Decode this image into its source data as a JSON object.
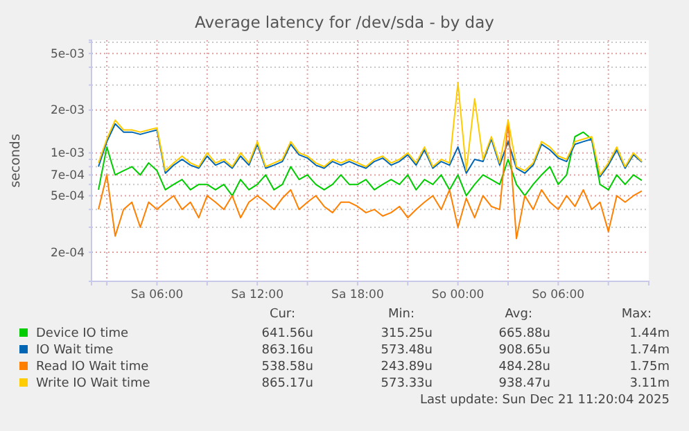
{
  "chart_data": {
    "type": "line",
    "title": "Average latency for /dev/sda - by day",
    "ylabel": "seconds",
    "log": "y",
    "grid": true,
    "legend": "bottom",
    "line_style": "solid",
    "marker": "none",
    "xlim": [
      "2025-12-20T02:05",
      "2025-12-21T11:25"
    ],
    "xticks": [
      {
        "value": "2025-12-20T03:00",
        "label": null
      },
      {
        "value": "2025-12-20T06:00",
        "label": "Sa 06:00"
      },
      {
        "value": "2025-12-20T09:00",
        "label": null
      },
      {
        "value": "2025-12-20T12:00",
        "label": "Sa 12:00"
      },
      {
        "value": "2025-12-20T15:00",
        "label": null
      },
      {
        "value": "2025-12-20T18:00",
        "label": "Sa 18:00"
      },
      {
        "value": "2025-12-20T21:00",
        "label": null
      },
      {
        "value": "2025-12-21T00:00",
        "label": "So 00:00"
      },
      {
        "value": "2025-12-21T03:00",
        "label": null
      },
      {
        "value": "2025-12-21T06:00",
        "label": "So 06:00"
      },
      {
        "value": "2025-12-21T09:00",
        "label": null
      }
    ],
    "ylim": [
      0.000125,
      0.0062
    ],
    "yticks": [
      {
        "value": 0.0002,
        "label": "2e-04"
      },
      {
        "value": 0.0003,
        "label": null
      },
      {
        "value": 0.0004,
        "label": null
      },
      {
        "value": 0.0005,
        "label": "5e-04"
      },
      {
        "value": 0.0006,
        "label": null
      },
      {
        "value": 0.0007,
        "label": "7e-04"
      },
      {
        "value": 0.0008,
        "label": null
      },
      {
        "value": 0.0009,
        "label": null
      },
      {
        "value": 0.001,
        "label": "1e-03"
      },
      {
        "value": 0.002,
        "label": "2e-03"
      },
      {
        "value": 0.003,
        "label": null
      },
      {
        "value": 0.004,
        "label": null
      },
      {
        "value": 0.005,
        "label": "5e-03"
      },
      {
        "value": 0.006,
        "label": null
      }
    ],
    "x": [
      "2025-12-20T02:30",
      "2025-12-20T03:00",
      "2025-12-20T03:30",
      "2025-12-20T04:00",
      "2025-12-20T04:30",
      "2025-12-20T05:00",
      "2025-12-20T05:30",
      "2025-12-20T06:00",
      "2025-12-20T06:30",
      "2025-12-20T07:00",
      "2025-12-20T07:30",
      "2025-12-20T08:00",
      "2025-12-20T08:30",
      "2025-12-20T09:00",
      "2025-12-20T09:30",
      "2025-12-20T10:00",
      "2025-12-20T10:30",
      "2025-12-20T11:00",
      "2025-12-20T11:30",
      "2025-12-20T12:00",
      "2025-12-20T12:30",
      "2025-12-20T13:00",
      "2025-12-20T13:30",
      "2025-12-20T14:00",
      "2025-12-20T14:30",
      "2025-12-20T15:00",
      "2025-12-20T15:30",
      "2025-12-20T16:00",
      "2025-12-20T16:30",
      "2025-12-20T17:00",
      "2025-12-20T17:30",
      "2025-12-20T18:00",
      "2025-12-20T18:30",
      "2025-12-20T19:00",
      "2025-12-20T19:30",
      "2025-12-20T20:00",
      "2025-12-20T20:30",
      "2025-12-20T21:00",
      "2025-12-20T21:30",
      "2025-12-20T22:00",
      "2025-12-20T22:30",
      "2025-12-20T23:00",
      "2025-12-20T23:30",
      "2025-12-21T00:00",
      "2025-12-21T00:30",
      "2025-12-21T01:00",
      "2025-12-21T01:30",
      "2025-12-21T02:00",
      "2025-12-21T02:30",
      "2025-12-21T03:00",
      "2025-12-21T03:30",
      "2025-12-21T04:00",
      "2025-12-21T04:30",
      "2025-12-21T05:00",
      "2025-12-21T05:30",
      "2025-12-21T06:00",
      "2025-12-21T06:30",
      "2025-12-21T07:00",
      "2025-12-21T07:30",
      "2025-12-21T08:00",
      "2025-12-21T08:30",
      "2025-12-21T09:00",
      "2025-12-21T09:30",
      "2025-12-21T10:00",
      "2025-12-21T10:30",
      "2025-12-21T11:00"
    ],
    "series": [
      {
        "name": "Device IO time",
        "color": "#00cc00",
        "values": [
          0.00055,
          0.0011,
          0.0007,
          0.00075,
          0.0008,
          0.0007,
          0.00085,
          0.00075,
          0.00055,
          0.0006,
          0.00065,
          0.00055,
          0.0006,
          0.0006,
          0.00055,
          0.0006,
          0.0005,
          0.00065,
          0.00055,
          0.0006,
          0.0007,
          0.00055,
          0.0006,
          0.0008,
          0.00065,
          0.0007,
          0.0006,
          0.00055,
          0.0006,
          0.0007,
          0.0006,
          0.0006,
          0.00065,
          0.00055,
          0.0006,
          0.00065,
          0.0006,
          0.0007,
          0.00055,
          0.00065,
          0.0006,
          0.0007,
          0.00055,
          0.0007,
          0.0005,
          0.0006,
          0.0007,
          0.00065,
          0.0006,
          0.0009,
          0.0006,
          0.0005,
          0.0006,
          0.0007,
          0.0008,
          0.0006,
          0.0007,
          0.0013,
          0.0014,
          0.00125,
          0.0006,
          0.00055,
          0.0007,
          0.0006,
          0.0007,
          0.00064
        ]
      },
      {
        "name": "IO Wait time",
        "color": "#0066b3",
        "values": [
          0.0008,
          0.0012,
          0.0016,
          0.0014,
          0.0014,
          0.00135,
          0.0014,
          0.00145,
          0.00072,
          0.00082,
          0.0009,
          0.00082,
          0.00078,
          0.00095,
          0.00082,
          0.00087,
          0.00078,
          0.00095,
          0.00082,
          0.00115,
          0.00078,
          0.00082,
          0.00087,
          0.00115,
          0.00097,
          0.00092,
          0.00082,
          0.00078,
          0.00087,
          0.00082,
          0.00087,
          0.00082,
          0.00078,
          0.00087,
          0.00092,
          0.00082,
          0.00087,
          0.00097,
          0.00082,
          0.00105,
          0.00078,
          0.00087,
          0.00082,
          0.0011,
          0.00072,
          0.0009,
          0.00087,
          0.00125,
          0.00082,
          0.0012,
          0.00078,
          0.00072,
          0.00082,
          0.00115,
          0.00105,
          0.00092,
          0.00087,
          0.00115,
          0.0012,
          0.00125,
          0.00068,
          0.00082,
          0.00105,
          0.00078,
          0.00097,
          0.00086
        ]
      },
      {
        "name": "Read IO Wait time",
        "color": "#ff8000",
        "values": [
          0.0004,
          0.0007,
          0.00026,
          0.0004,
          0.00045,
          0.0003,
          0.00045,
          0.0004,
          0.00045,
          0.0005,
          0.0004,
          0.00045,
          0.00035,
          0.0005,
          0.00045,
          0.0004,
          0.0005,
          0.00035,
          0.00045,
          0.0005,
          0.00045,
          0.0004,
          0.00048,
          0.00055,
          0.0004,
          0.00045,
          0.0005,
          0.00042,
          0.00038,
          0.00045,
          0.00045,
          0.00042,
          0.00038,
          0.0004,
          0.00036,
          0.00038,
          0.00042,
          0.00035,
          0.0004,
          0.00045,
          0.0005,
          0.0004,
          0.00055,
          0.0003,
          0.00048,
          0.00035,
          0.0005,
          0.00042,
          0.0004,
          0.00165,
          0.00025,
          0.0005,
          0.0004,
          0.00055,
          0.00045,
          0.0004,
          0.0005,
          0.00042,
          0.00055,
          0.0004,
          0.00045,
          0.00028,
          0.0005,
          0.00045,
          0.0005,
          0.00054
        ]
      },
      {
        "name": "Write IO Wait time",
        "color": "#ffcc00",
        "values": [
          0.00085,
          0.00125,
          0.0017,
          0.00145,
          0.00145,
          0.0014,
          0.00145,
          0.0015,
          0.00075,
          0.00085,
          0.00095,
          0.00085,
          0.0008,
          0.001,
          0.00085,
          0.0009,
          0.0008,
          0.001,
          0.00085,
          0.0012,
          0.0008,
          0.00085,
          0.0009,
          0.0012,
          0.001,
          0.00095,
          0.00085,
          0.0008,
          0.0009,
          0.00085,
          0.0009,
          0.00085,
          0.0008,
          0.0009,
          0.00095,
          0.00085,
          0.0009,
          0.001,
          0.00085,
          0.0011,
          0.0008,
          0.0009,
          0.00085,
          0.0031,
          0.00075,
          0.0024,
          0.0009,
          0.0013,
          0.00085,
          0.0017,
          0.0008,
          0.00075,
          0.00085,
          0.0012,
          0.0011,
          0.00095,
          0.0009,
          0.0012,
          0.00125,
          0.0013,
          0.0007,
          0.00085,
          0.0011,
          0.0008,
          0.001,
          0.00087
        ]
      }
    ],
    "annotations": [
      "Cur:",
      "Min:",
      "Avg:",
      "Max:",
      "641.56u",
      "315.25u",
      "665.88u",
      "1.44m",
      "863.16u",
      "573.48u",
      "908.65u",
      "1.74m",
      "538.58u",
      "243.89u",
      "484.28u",
      "1.75m",
      "865.17u",
      "573.33u",
      "938.47u",
      "3.11m",
      "Last update: Sun Dec 21 11:20:04 2025"
    ]
  }
}
